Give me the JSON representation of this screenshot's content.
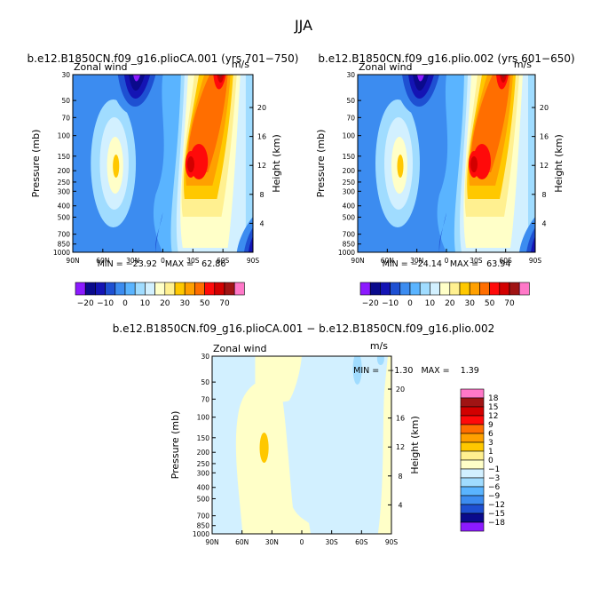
{
  "page": {
    "title": "JJA",
    "diff_title": "b.e12.B1850CN.f09_g16.plioCA.001 − b.e12.B1850CN.f09_g16.plio.002"
  },
  "chart_data": [
    {
      "type": "contour",
      "title": "b.e12.B1850CN.f09_g16.plioCA.001 (yrs 701−750)",
      "left_label": "Zonal wind",
      "right_label": "m/s",
      "ylabel": "Pressure (mb)",
      "ylabel_right": "Height (km)",
      "xticks": [
        "90N",
        "60N",
        "30N",
        "0",
        "30S",
        "60S",
        "90S"
      ],
      "xlim": [
        90,
        -90
      ],
      "yticks": [
        30,
        50,
        70,
        100,
        150,
        200,
        250,
        300,
        400,
        500,
        700,
        850,
        1000
      ],
      "ylim": [
        30,
        1000
      ],
      "height_ticks": [
        4,
        8,
        12,
        16,
        20
      ],
      "stats": "MIN = −23.92   MAX =   62.86",
      "min": -23.92,
      "max": 62.86,
      "features": [
        {
          "lat": -30,
          "p": 200,
          "value": 62.86,
          "kind": "westerly jet core"
        },
        {
          "lat": 50,
          "p": 200,
          "value": 20,
          "kind": "northern westerly maximum"
        },
        {
          "lat": 20,
          "p": 30,
          "value": -23.92,
          "kind": "stratospheric easterlies"
        }
      ]
    },
    {
      "type": "contour",
      "title": "b.e12.B1850CN.f09_g16.plio.002 (yrs 601−650)",
      "left_label": "Zonal wind",
      "right_label": "m/s",
      "ylabel": "Pressure (mb)",
      "ylabel_right": "Height (km)",
      "xticks": [
        "90N",
        "60N",
        "30N",
        "0",
        "30S",
        "60S",
        "90S"
      ],
      "xlim": [
        90,
        -90
      ],
      "yticks": [
        30,
        50,
        70,
        100,
        150,
        200,
        250,
        300,
        400,
        500,
        700,
        850,
        1000
      ],
      "ylim": [
        30,
        1000
      ],
      "height_ticks": [
        4,
        8,
        12,
        16,
        20
      ],
      "stats": "MIN = −24.14   MAX =   63.94",
      "min": -24.14,
      "max": 63.94,
      "features": [
        {
          "lat": -30,
          "p": 200,
          "value": 63.94,
          "kind": "westerly jet core"
        },
        {
          "lat": 50,
          "p": 200,
          "value": 20,
          "kind": "northern westerly maximum"
        },
        {
          "lat": 20,
          "p": 30,
          "value": -24.14,
          "kind": "stratospheric easterlies"
        }
      ]
    },
    {
      "type": "contour",
      "title": "b.e12.B1850CN.f09_g16.plioCA.001 − b.e12.B1850CN.f09_g16.plio.002",
      "left_label": "Zonal wind",
      "right_label": "m/s",
      "ylabel": "Pressure (mb)",
      "ylabel_right": "Height (km)",
      "xticks": [
        "90N",
        "60N",
        "30N",
        "0",
        "30S",
        "60S",
        "90S"
      ],
      "xlim": [
        90,
        -90
      ],
      "yticks": [
        30,
        50,
        70,
        100,
        150,
        200,
        250,
        300,
        400,
        500,
        700,
        850,
        1000
      ],
      "ylim": [
        30,
        1000
      ],
      "height_ticks": [
        4,
        8,
        12,
        16,
        20
      ],
      "stats": "MIN =   −1.30   MAX =    1.39",
      "min": -1.3,
      "max": 1.39
    }
  ],
  "colorbar_top": {
    "labels": [
      "−20",
      "−10",
      "0",
      "10",
      "20",
      "30",
      "50",
      "70"
    ],
    "colors": [
      "#8c1aff",
      "#0a0a8c",
      "#1414b4",
      "#1e50d2",
      "#3c8cf0",
      "#5ab4ff",
      "#a0dcff",
      "#d2f0ff",
      "#ffffc8",
      "#fff090",
      "#ffc800",
      "#ffa000",
      "#ff6e00",
      "#ff0a0a",
      "#d20000",
      "#a01414",
      "#ff78c8"
    ]
  },
  "colorbar_diff": {
    "labels": [
      "18",
      "15",
      "12",
      "9",
      "6",
      "3",
      "1",
      "0",
      "−1",
      "−3",
      "−6",
      "−9",
      "−12",
      "−15",
      "−18"
    ],
    "colors": [
      "#ff78c8",
      "#a01414",
      "#d20000",
      "#ff0a0a",
      "#ff6e00",
      "#ffa000",
      "#ffc800",
      "#fff090",
      "#ffffc8",
      "#d2f0ff",
      "#a0dcff",
      "#5ab4ff",
      "#3c8cf0",
      "#1e50d2",
      "#0a0a8c",
      "#8c1aff"
    ]
  }
}
